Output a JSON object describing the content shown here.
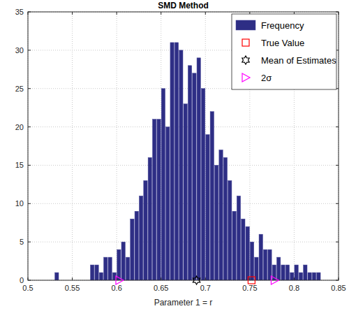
{
  "chart_data": {
    "type": "histogram",
    "title": "SMD Method",
    "x_label": "Parameter 1 = r",
    "xlim": [
      0.5,
      0.85
    ],
    "xticks": [
      0.5,
      0.55,
      0.6,
      0.65,
      0.7,
      0.75,
      0.8,
      0.85
    ],
    "ylim": [
      0,
      35
    ],
    "yticks": [
      0,
      5,
      10,
      15,
      20,
      25,
      30,
      35
    ],
    "grid": true,
    "legend": "northeast",
    "bins": [
      0.53,
      0.535,
      0.54,
      0.545,
      0.55,
      0.555,
      0.56,
      0.565,
      0.57,
      0.575,
      0.58,
      0.585,
      0.59,
      0.595,
      0.6,
      0.605,
      0.61,
      0.615,
      0.62,
      0.625,
      0.63,
      0.635,
      0.64,
      0.645,
      0.65,
      0.655,
      0.66,
      0.665,
      0.67,
      0.675,
      0.68,
      0.685,
      0.69,
      0.695,
      0.7,
      0.705,
      0.71,
      0.715,
      0.72,
      0.725,
      0.73,
      0.735,
      0.74,
      0.745,
      0.75,
      0.755,
      0.76,
      0.765,
      0.77,
      0.775,
      0.78,
      0.785,
      0.79,
      0.795,
      0.8,
      0.805,
      0.81,
      0.815,
      0.82,
      0.825,
      0.83
    ],
    "series": [
      {
        "name": "Frequency",
        "type": "bar",
        "color": "#2e2e85",
        "values": [
          1,
          0,
          0,
          0,
          0,
          0,
          0,
          0,
          2,
          2,
          1,
          3,
          3,
          1,
          4,
          5,
          3,
          8,
          9,
          11,
          13,
          16,
          21,
          21,
          25,
          20,
          31,
          31,
          30,
          23,
          28,
          27,
          29,
          25,
          19,
          22,
          15,
          17,
          16,
          13,
          9,
          11,
          8,
          7,
          5,
          3,
          6,
          4,
          4,
          2,
          3,
          2,
          2,
          1,
          2,
          1,
          2,
          1,
          1,
          1
        ]
      },
      {
        "name": "True Value",
        "type": "scatter",
        "marker": "square",
        "color": "#ff0000",
        "x": [
          0.752
        ],
        "values": [
          0
        ]
      },
      {
        "name": "Mean of Estimates",
        "type": "scatter",
        "marker": "hexagram",
        "color": "#000000",
        "x": [
          0.69
        ],
        "values": [
          0
        ]
      },
      {
        "name": "2σ",
        "type": "scatter",
        "marker": "triangle-right",
        "color": "#ff00ff",
        "x": [
          0.603,
          0.778
        ],
        "values": [
          0,
          0
        ]
      }
    ]
  }
}
